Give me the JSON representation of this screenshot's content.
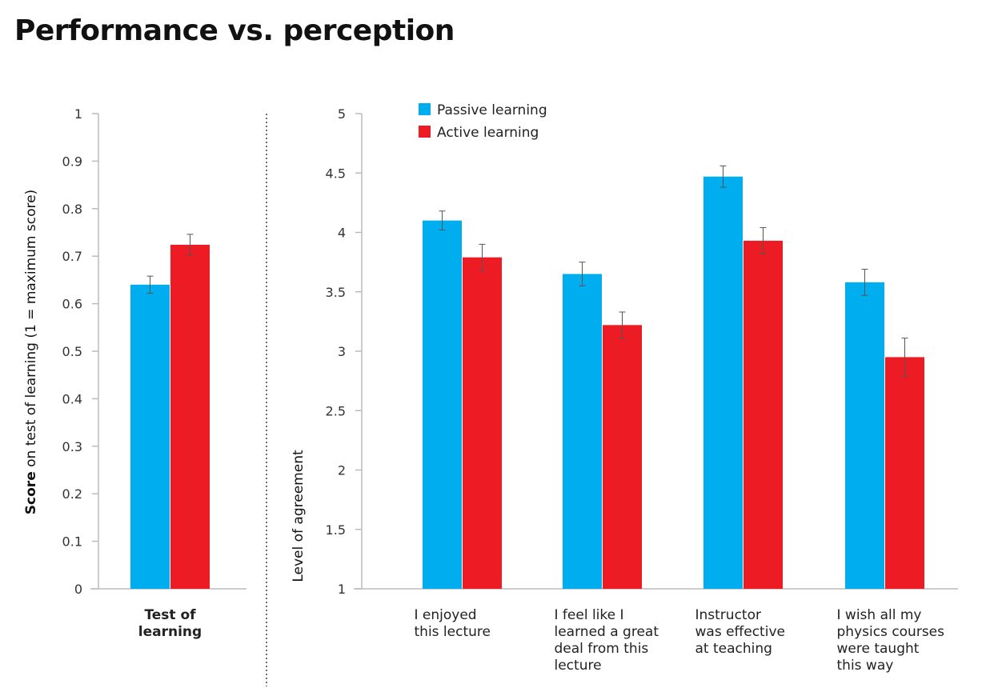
{
  "title": "Performance vs. perception",
  "colors": {
    "passive": "#00AEEF",
    "active": "#ED1C24",
    "error_bar": "#555555"
  },
  "chart_data": [
    {
      "type": "bar",
      "categories": [
        "Test of learning"
      ],
      "ylabel_bold": "Score",
      "ylabel_rest": " on test of learning  (1 = maximum score)",
      "ylim": [
        0,
        1
      ],
      "yticks": [
        "0",
        "0.1",
        "0.2",
        "0.3",
        "0.4",
        "0.5",
        "0.6",
        "0.7",
        "0.8",
        "0.9",
        "1"
      ],
      "grid": false,
      "series": [
        {
          "name": "Passive learning",
          "values": [
            0.64
          ],
          "errors": [
            0.018
          ]
        },
        {
          "name": "Active learning",
          "values": [
            0.724
          ],
          "errors": [
            0.022
          ]
        }
      ]
    },
    {
      "type": "bar",
      "categories": [
        [
          "I enjoyed",
          "this lecture"
        ],
        [
          "I feel like I",
          "learned a great",
          "deal from this",
          "lecture"
        ],
        [
          "Instructor",
          "was effective",
          "at teaching"
        ],
        [
          "I wish all my",
          "physics courses",
          "were taught",
          "this way"
        ]
      ],
      "ylabel": "Level of agreement",
      "ylim": [
        1,
        5
      ],
      "yticks": [
        "1",
        "1.5",
        "2",
        "2.5",
        "3",
        "3.5",
        "4",
        "4.5",
        "5"
      ],
      "grid": false,
      "legend": "top-left",
      "series": [
        {
          "name": "Passive learning",
          "values": [
            4.1,
            3.65,
            4.47,
            3.58
          ],
          "errors": [
            0.08,
            0.1,
            0.09,
            0.11
          ]
        },
        {
          "name": "Active learning",
          "values": [
            3.79,
            3.22,
            3.93,
            2.95
          ],
          "errors": [
            0.11,
            0.11,
            0.11,
            0.16
          ]
        }
      ]
    }
  ]
}
